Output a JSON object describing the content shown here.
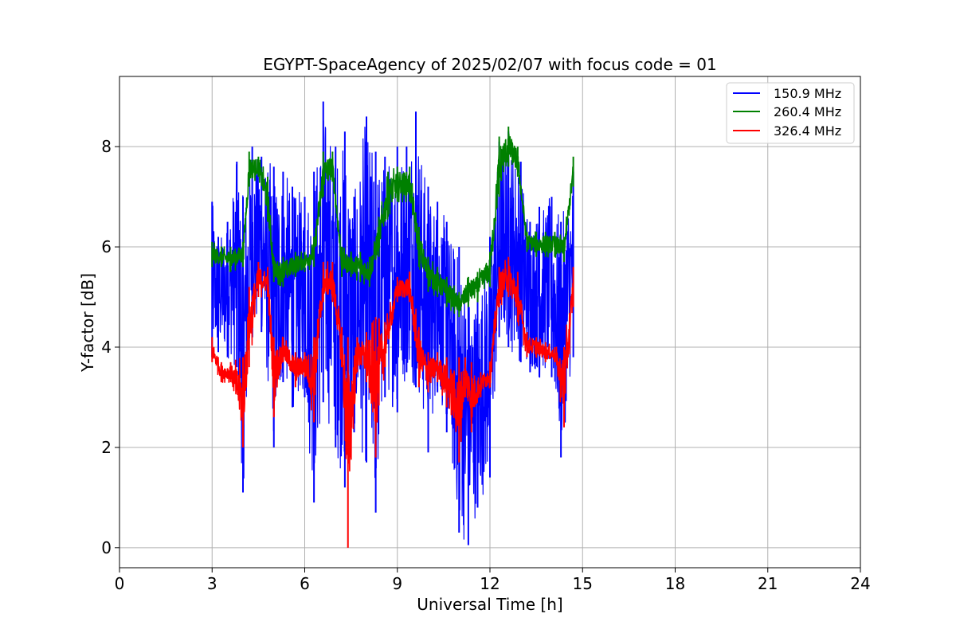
{
  "chart_data": {
    "type": "line",
    "title": "EGYPT-SpaceAgency of 2025/02/07 with focus code = 01",
    "xlabel": "Universal Time [h]",
    "ylabel": "Y-factor [dB]",
    "xlim": [
      0,
      24
    ],
    "ylim": [
      -0.4,
      9.4
    ],
    "xticks": [
      0,
      3,
      6,
      9,
      12,
      15,
      18,
      21,
      24
    ],
    "yticks": [
      0,
      2,
      4,
      6,
      8
    ],
    "grid": true,
    "legend_position": "top-right",
    "series": [
      {
        "name": "150.9 MHz",
        "color": "#0000ff",
        "x": [
          3.0,
          3.2,
          3.5,
          3.8,
          4.0,
          4.3,
          4.6,
          5.0,
          5.3,
          5.6,
          6.0,
          6.3,
          6.6,
          7.0,
          7.3,
          7.6,
          8.0,
          8.3,
          8.6,
          9.0,
          9.3,
          9.6,
          10.0,
          10.3,
          10.6,
          11.0,
          11.3,
          11.6,
          12.0,
          12.3,
          12.6,
          13.0,
          13.3,
          13.6,
          14.0,
          14.3,
          14.7
        ],
        "y_min": [
          3.8,
          3.9,
          3.8,
          3.6,
          1.1,
          4.2,
          4.3,
          2.0,
          3.3,
          2.8,
          3.0,
          0.9,
          2.9,
          2.0,
          1.2,
          2.3,
          1.7,
          0.7,
          3.0,
          2.7,
          3.5,
          3.2,
          1.9,
          3.1,
          2.3,
          0.3,
          0.05,
          0.8,
          1.4,
          4.2,
          4.0,
          3.7,
          3.5,
          3.4,
          3.4,
          1.8,
          3.8
        ],
        "y_max": [
          6.9,
          6.2,
          6.5,
          7.7,
          7.0,
          8.0,
          7.8,
          7.6,
          7.5,
          7.2,
          7.0,
          7.5,
          8.9,
          8.0,
          8.3,
          7.0,
          8.6,
          7.9,
          7.8,
          8.0,
          8.0,
          8.7,
          7.2,
          6.9,
          6.5,
          6.0,
          5.2,
          5.0,
          6.2,
          8.1,
          8.3,
          7.7,
          6.5,
          6.8,
          7.0,
          6.5,
          7.5
        ]
      },
      {
        "name": "260.4 MHz",
        "color": "#008000",
        "x": [
          3.0,
          3.3,
          3.6,
          4.0,
          4.2,
          4.5,
          4.8,
          5.0,
          5.3,
          5.7,
          6.0,
          6.3,
          6.6,
          6.9,
          7.2,
          7.5,
          7.8,
          8.1,
          8.4,
          8.7,
          9.0,
          9.4,
          9.7,
          10.0,
          10.3,
          10.6,
          11.0,
          11.3,
          11.6,
          12.0,
          12.3,
          12.6,
          12.9,
          13.2,
          13.5,
          13.8,
          14.1,
          14.4,
          14.7
        ],
        "y_min": [
          5.6,
          5.6,
          5.5,
          5.6,
          7.2,
          7.4,
          6.5,
          5.3,
          5.2,
          5.4,
          5.5,
          5.6,
          7.0,
          7.3,
          5.4,
          5.4,
          5.3,
          5.2,
          5.8,
          6.6,
          6.9,
          6.9,
          5.6,
          5.1,
          5.0,
          4.8,
          4.6,
          4.8,
          4.9,
          5.2,
          7.0,
          7.6,
          7.4,
          5.9,
          5.8,
          5.8,
          5.8,
          5.7,
          7.2
        ],
        "y_max": [
          6.1,
          6.0,
          6.0,
          6.1,
          7.9,
          7.8,
          7.4,
          5.8,
          5.8,
          5.9,
          5.9,
          6.2,
          7.9,
          7.9,
          6.0,
          5.9,
          5.9,
          5.8,
          6.6,
          7.5,
          7.6,
          7.6,
          6.4,
          5.8,
          5.6,
          5.4,
          5.1,
          5.4,
          5.5,
          5.9,
          8.2,
          8.4,
          8.0,
          6.3,
          6.3,
          6.3,
          6.3,
          6.2,
          7.8
        ]
      },
      {
        "name": "326.4 MHz",
        "color": "#ff0000",
        "x": [
          3.0,
          3.3,
          3.6,
          4.0,
          4.2,
          4.5,
          4.8,
          5.0,
          5.3,
          5.7,
          6.0,
          6.3,
          6.6,
          6.9,
          7.2,
          7.4,
          7.7,
          8.0,
          8.3,
          8.6,
          9.0,
          9.4,
          9.7,
          10.0,
          10.3,
          10.6,
          11.0,
          11.2,
          11.4,
          11.7,
          12.0,
          12.3,
          12.6,
          12.9,
          13.2,
          13.5,
          13.8,
          14.1,
          14.4,
          14.7
        ],
        "y_min": [
          3.7,
          3.3,
          3.3,
          2.0,
          3.6,
          5.0,
          5.0,
          2.6,
          3.7,
          3.2,
          3.4,
          2.5,
          4.9,
          4.9,
          3.6,
          0.0,
          3.5,
          3.3,
          1.8,
          3.6,
          4.9,
          4.9,
          3.2,
          3.1,
          3.3,
          2.8,
          1.7,
          3.0,
          2.3,
          3.0,
          3.2,
          4.8,
          5.0,
          4.5,
          3.8,
          3.8,
          3.7,
          3.7,
          2.4,
          4.8
        ],
        "y_max": [
          4.2,
          3.7,
          3.7,
          3.8,
          5.2,
          5.7,
          5.6,
          4.2,
          4.2,
          3.9,
          3.9,
          4.2,
          5.7,
          5.7,
          4.4,
          4.2,
          4.2,
          4.3,
          4.6,
          4.5,
          5.4,
          5.5,
          4.4,
          3.9,
          3.9,
          3.8,
          3.8,
          3.8,
          3.7,
          3.5,
          3.7,
          5.6,
          5.8,
          5.5,
          4.3,
          4.2,
          4.1,
          4.0,
          4.0,
          5.6
        ]
      }
    ]
  }
}
